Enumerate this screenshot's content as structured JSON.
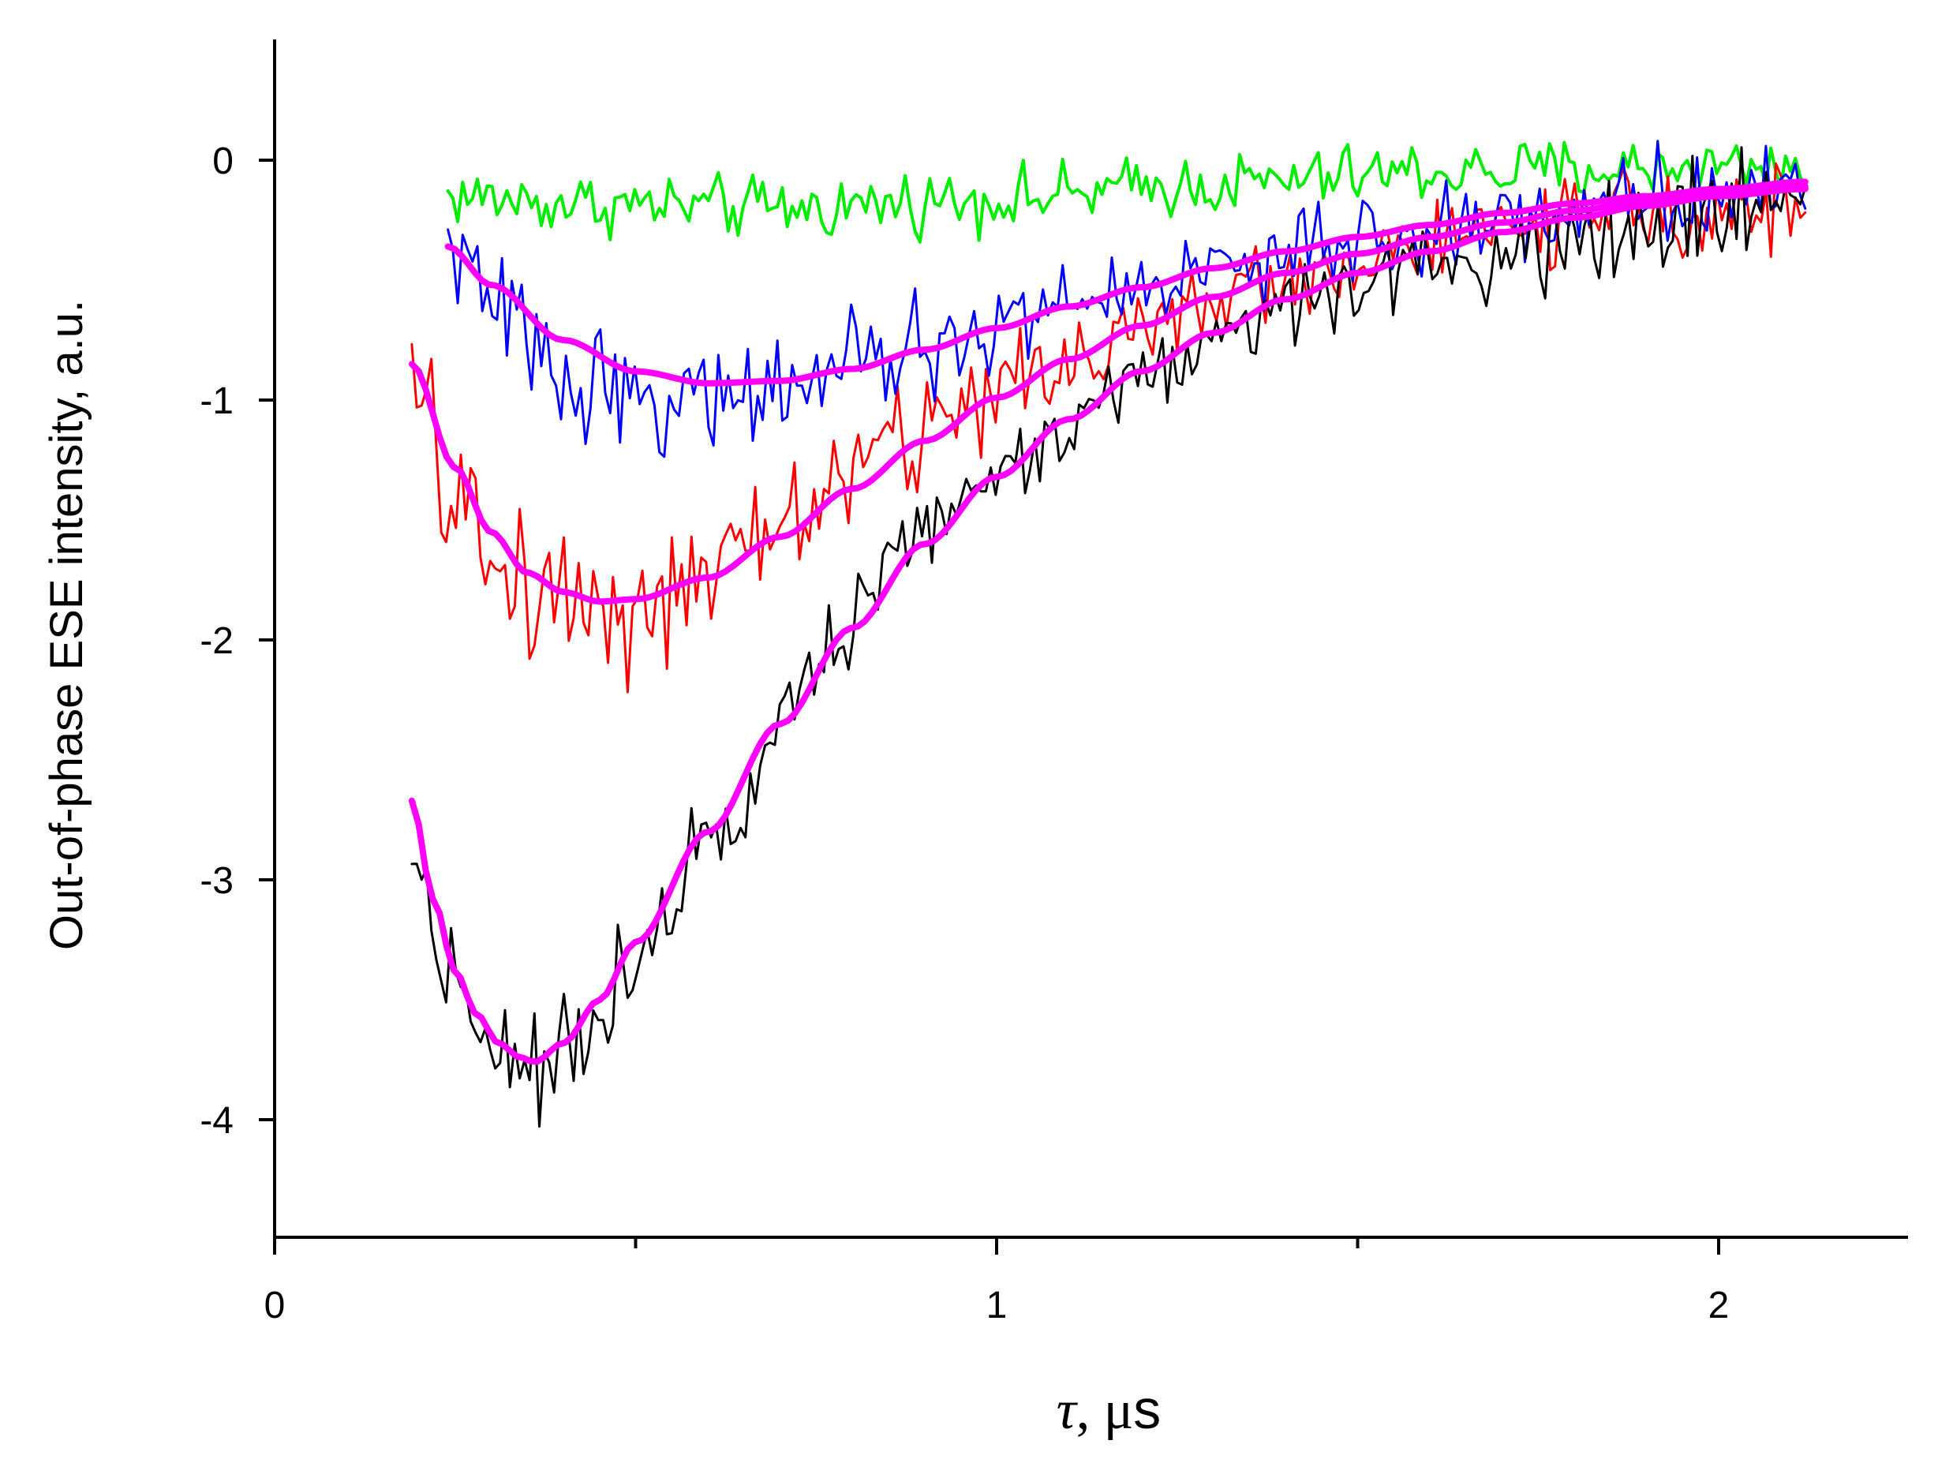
{
  "chart_data": {
    "type": "line",
    "title": "",
    "xlabel": {
      "symbol": "τ",
      "rest": ", μ",
      "unit": "s"
    },
    "ylabel": "Out-of-phase ESE intensity, a.u.",
    "xlim": [
      0,
      2.25
    ],
    "ylim": [
      -4.5,
      0.5
    ],
    "x_ticks": [
      0,
      1,
      2
    ],
    "x_tick_labels": [
      "0",
      "1",
      "2"
    ],
    "x_minor_ticks": [
      0.5,
      1.5
    ],
    "y_ticks": [
      0,
      -1,
      -2,
      -3,
      -4
    ],
    "y_tick_labels": [
      "0",
      "-1",
      "-2",
      "-3",
      "-4"
    ],
    "grid": false,
    "legend": "none",
    "series": [
      {
        "color": "#00ee00",
        "width": 4,
        "kind": "noisy",
        "x_start": 0.24,
        "x_end": 2.12,
        "anchors": [
          [
            0.24,
            -0.15
          ],
          [
            0.4,
            -0.18
          ],
          [
            0.7,
            -0.2
          ],
          [
            1.0,
            -0.16
          ],
          [
            1.3,
            -0.1
          ],
          [
            1.6,
            -0.05
          ],
          [
            2.12,
            -0.02
          ]
        ],
        "noise": [
          [
            0.24,
            0.12
          ],
          [
            2.12,
            0.12
          ]
        ]
      },
      {
        "color": "#ff0000",
        "width": 3,
        "kind": "noisy",
        "x_start": 0.19,
        "x_end": 2.12,
        "anchors": [
          [
            0.19,
            -1.0
          ],
          [
            0.25,
            -1.4
          ],
          [
            0.3,
            -1.7
          ],
          [
            0.4,
            -1.8
          ],
          [
            0.5,
            -1.85
          ],
          [
            0.6,
            -1.8
          ],
          [
            0.7,
            -1.5
          ],
          [
            0.85,
            -1.2
          ],
          [
            1.0,
            -0.95
          ],
          [
            1.2,
            -0.7
          ],
          [
            1.4,
            -0.5
          ],
          [
            1.6,
            -0.35
          ],
          [
            1.8,
            -0.25
          ],
          [
            2.0,
            -0.2
          ],
          [
            2.12,
            -0.2
          ]
        ],
        "noise": [
          [
            0.19,
            0.3
          ],
          [
            0.7,
            0.28
          ],
          [
            1.4,
            0.15
          ],
          [
            2.12,
            0.17
          ]
        ]
      },
      {
        "color": "#0000ff",
        "width": 3,
        "kind": "noisy",
        "x_start": 0.24,
        "x_end": 2.12,
        "anchors": [
          [
            0.24,
            -0.35
          ],
          [
            0.3,
            -0.6
          ],
          [
            0.4,
            -0.9
          ],
          [
            0.55,
            -1.0
          ],
          [
            0.7,
            -0.95
          ],
          [
            0.9,
            -0.8
          ],
          [
            1.1,
            -0.6
          ],
          [
            1.3,
            -0.45
          ],
          [
            1.5,
            -0.35
          ],
          [
            1.7,
            -0.25
          ],
          [
            1.9,
            -0.15
          ],
          [
            2.12,
            -0.1
          ]
        ],
        "noise": [
          [
            0.24,
            0.2
          ],
          [
            0.7,
            0.22
          ],
          [
            1.3,
            0.15
          ],
          [
            2.12,
            0.18
          ]
        ]
      },
      {
        "color": "#000000",
        "width": 3,
        "kind": "noisy",
        "x_start": 0.19,
        "x_end": 2.12,
        "anchors": [
          [
            0.19,
            -2.9
          ],
          [
            0.24,
            -3.35
          ],
          [
            0.3,
            -3.65
          ],
          [
            0.36,
            -3.8
          ],
          [
            0.42,
            -3.7
          ],
          [
            0.5,
            -3.3
          ],
          [
            0.6,
            -2.8
          ],
          [
            0.75,
            -2.1
          ],
          [
            0.9,
            -1.55
          ],
          [
            1.0,
            -1.3
          ],
          [
            1.2,
            -0.9
          ],
          [
            1.4,
            -0.6
          ],
          [
            1.6,
            -0.45
          ],
          [
            1.8,
            -0.3
          ],
          [
            2.0,
            -0.2
          ],
          [
            2.12,
            -0.15
          ]
        ],
        "noise": [
          [
            0.19,
            0.2
          ],
          [
            0.8,
            0.16
          ],
          [
            1.5,
            0.15
          ],
          [
            1.85,
            0.25
          ],
          [
            2.12,
            0.2
          ]
        ]
      },
      {
        "color": "#ff00ff",
        "width": 8,
        "kind": "fit",
        "x_start": 0.24,
        "x_end": 2.12,
        "points": [
          [
            0.24,
            -0.36
          ],
          [
            0.3,
            -0.52
          ],
          [
            0.4,
            -0.75
          ],
          [
            0.5,
            -0.88
          ],
          [
            0.6,
            -0.93
          ],
          [
            0.7,
            -0.92
          ],
          [
            0.8,
            -0.87
          ],
          [
            0.9,
            -0.79
          ],
          [
            1.0,
            -0.7
          ],
          [
            1.1,
            -0.61
          ],
          [
            1.2,
            -0.53
          ],
          [
            1.3,
            -0.45
          ],
          [
            1.4,
            -0.38
          ],
          [
            1.5,
            -0.32
          ],
          [
            1.6,
            -0.27
          ],
          [
            1.7,
            -0.22
          ],
          [
            1.8,
            -0.18
          ],
          [
            1.9,
            -0.15
          ],
          [
            2.0,
            -0.12
          ],
          [
            2.12,
            -0.09
          ]
        ]
      },
      {
        "color": "#ff00ff",
        "width": 8,
        "kind": "fit",
        "x_start": 0.19,
        "x_end": 2.12,
        "points": [
          [
            0.19,
            -0.85
          ],
          [
            0.25,
            -1.28
          ],
          [
            0.3,
            -1.55
          ],
          [
            0.35,
            -1.72
          ],
          [
            0.4,
            -1.8
          ],
          [
            0.45,
            -1.84
          ],
          [
            0.5,
            -1.83
          ],
          [
            0.6,
            -1.74
          ],
          [
            0.7,
            -1.57
          ],
          [
            0.8,
            -1.37
          ],
          [
            0.9,
            -1.17
          ],
          [
            1.0,
            -0.99
          ],
          [
            1.1,
            -0.83
          ],
          [
            1.2,
            -0.69
          ],
          [
            1.3,
            -0.57
          ],
          [
            1.4,
            -0.47
          ],
          [
            1.5,
            -0.39
          ],
          [
            1.6,
            -0.32
          ],
          [
            1.7,
            -0.26
          ],
          [
            1.8,
            -0.21
          ],
          [
            1.9,
            -0.17
          ],
          [
            2.0,
            -0.14
          ],
          [
            2.12,
            -0.11
          ]
        ]
      },
      {
        "color": "#ff00ff",
        "width": 8,
        "kind": "fit",
        "x_start": 0.19,
        "x_end": 2.12,
        "points": [
          [
            0.19,
            -2.67
          ],
          [
            0.22,
            -3.08
          ],
          [
            0.25,
            -3.38
          ],
          [
            0.28,
            -3.56
          ],
          [
            0.31,
            -3.68
          ],
          [
            0.34,
            -3.74
          ],
          [
            0.36,
            -3.76
          ],
          [
            0.4,
            -3.68
          ],
          [
            0.45,
            -3.5
          ],
          [
            0.5,
            -3.26
          ],
          [
            0.6,
            -2.8
          ],
          [
            0.7,
            -2.35
          ],
          [
            0.8,
            -1.95
          ],
          [
            0.9,
            -1.6
          ],
          [
            1.0,
            -1.32
          ],
          [
            1.1,
            -1.08
          ],
          [
            1.2,
            -0.88
          ],
          [
            1.3,
            -0.72
          ],
          [
            1.4,
            -0.58
          ],
          [
            1.5,
            -0.47
          ],
          [
            1.6,
            -0.38
          ],
          [
            1.7,
            -0.3
          ],
          [
            1.8,
            -0.24
          ],
          [
            1.9,
            -0.19
          ],
          [
            2.0,
            -0.15
          ],
          [
            2.12,
            -0.12
          ]
        ]
      }
    ]
  }
}
